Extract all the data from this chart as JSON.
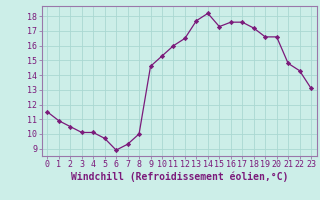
{
  "x": [
    0,
    1,
    2,
    3,
    4,
    5,
    6,
    7,
    8,
    9,
    10,
    11,
    12,
    13,
    14,
    15,
    16,
    17,
    18,
    19,
    20,
    21,
    22,
    23
  ],
  "y": [
    11.5,
    10.9,
    10.5,
    10.1,
    10.1,
    9.7,
    8.9,
    9.3,
    10.0,
    14.6,
    15.3,
    16.0,
    16.5,
    17.7,
    18.2,
    17.3,
    17.6,
    17.6,
    17.2,
    16.6,
    16.6,
    14.8,
    14.3,
    13.1
  ],
  "line_color": "#7B1A7B",
  "marker": "D",
  "marker_size": 2.2,
  "bg_color": "#cceee8",
  "grid_color": "#aad8d2",
  "xlabel": "Windchill (Refroidissement éolien,°C)",
  "ylim": [
    8.5,
    18.7
  ],
  "xlim": [
    -0.5,
    23.5
  ],
  "yticks": [
    9,
    10,
    11,
    12,
    13,
    14,
    15,
    16,
    17,
    18
  ],
  "xticks": [
    0,
    1,
    2,
    3,
    4,
    5,
    6,
    7,
    8,
    9,
    10,
    11,
    12,
    13,
    14,
    15,
    16,
    17,
    18,
    19,
    20,
    21,
    22,
    23
  ],
  "tick_fontsize": 6.0,
  "xlabel_fontsize": 7.0,
  "spine_color": "#9977aa"
}
